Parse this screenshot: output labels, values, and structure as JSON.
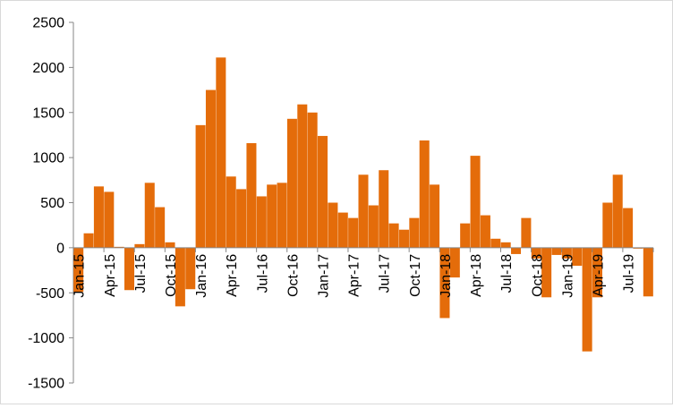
{
  "chart_data": {
    "type": "bar",
    "title": "",
    "xlabel": "",
    "ylabel": "",
    "ylim": [
      -1500,
      2500
    ],
    "yticks": [
      -1500,
      -1000,
      -500,
      0,
      500,
      1000,
      1500,
      2000,
      2500
    ],
    "grid": false,
    "legend": "none",
    "bar_color": "#E46C0A",
    "x_tick_labels": [
      "Jan-15",
      "Apr-15",
      "Jul-15",
      "Oct-15",
      "Jan-16",
      "Apr-16",
      "Jul-16",
      "Oct-16",
      "Jan-17",
      "Apr-17",
      "Jul-17",
      "Oct-17",
      "Jan-18",
      "Apr-18",
      "Jul-18",
      "Oct-18",
      "Jan-19",
      "Apr-19",
      "Jul-19"
    ],
    "x_tick_every": 3,
    "series": [
      {
        "values": [
          -490,
          160,
          680,
          620,
          10,
          -470,
          40,
          720,
          450,
          60,
          -650,
          -460,
          1360,
          1750,
          2110,
          790,
          650,
          1160,
          570,
          700,
          720,
          1430,
          1590,
          1500,
          1240,
          500,
          390,
          330,
          810,
          470,
          860,
          270,
          200,
          330,
          1190,
          700,
          -780,
          -330,
          270,
          1020,
          360,
          100,
          60,
          -70,
          330,
          -120,
          -550,
          -80,
          -120,
          -200,
          -1150,
          -550,
          500,
          810,
          440,
          -10,
          -540
        ]
      }
    ]
  }
}
